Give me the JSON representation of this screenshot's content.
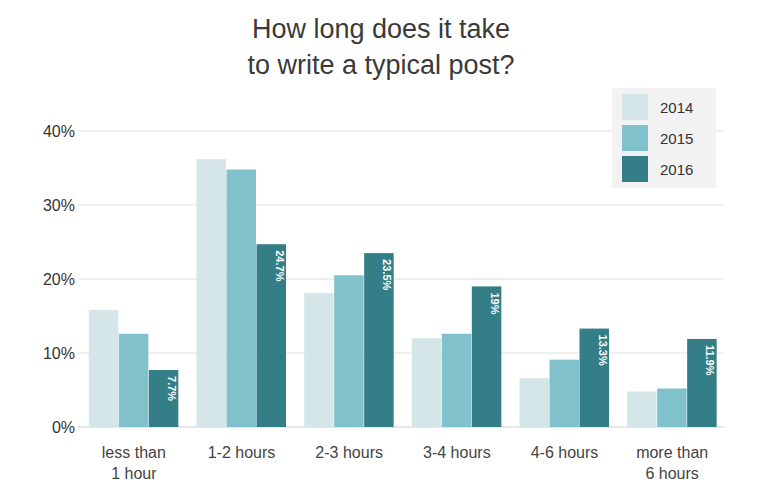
{
  "chart_data": {
    "type": "bar",
    "title": "How long does it take to write a typical post?",
    "categories": [
      "less than 1 hour",
      "1-2 hours",
      "2-3 hours",
      "3-4 hours",
      "4-6 hours",
      "more than 6 hours"
    ],
    "series": [
      {
        "name": "2014",
        "color": "#d4e6e8",
        "values": [
          15.8,
          36.2,
          18.1,
          12.0,
          6.6,
          4.8
        ]
      },
      {
        "name": "2015",
        "color": "#80c1cb",
        "values": [
          12.6,
          34.8,
          20.5,
          12.6,
          9.1,
          5.2
        ]
      },
      {
        "name": "2016",
        "color": "#347e87",
        "values": [
          7.7,
          24.7,
          23.5,
          19,
          13.3,
          11.9
        ],
        "value_labels": [
          "7.7%",
          "24.7%",
          "23.5%",
          "19%",
          "13.3%",
          "11.9%"
        ]
      }
    ],
    "ylim": [
      0,
      40
    ],
    "yticks": [
      {
        "value": 0,
        "label": "0%"
      },
      {
        "value": 10,
        "label": "10%"
      },
      {
        "value": 20,
        "label": "20%"
      },
      {
        "value": 30,
        "label": "30%"
      },
      {
        "value": 40,
        "label": "40%"
      }
    ],
    "grid": true,
    "legend": "upper right",
    "data_labels": true
  }
}
